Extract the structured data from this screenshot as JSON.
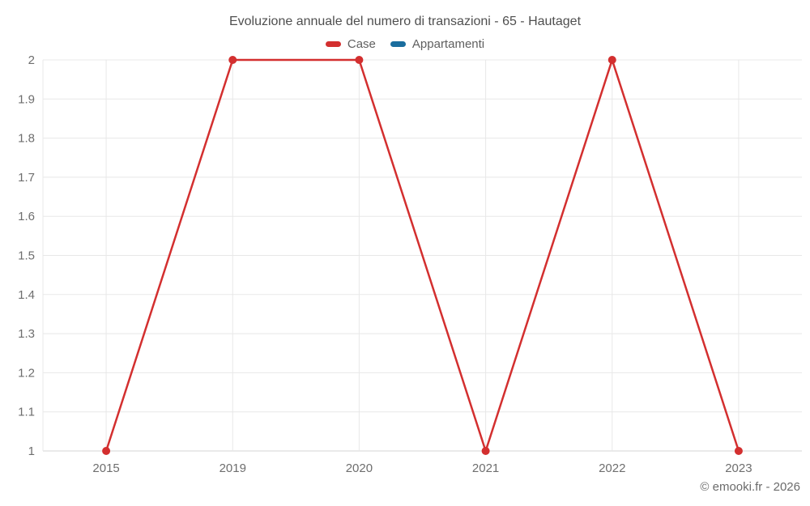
{
  "chart_data": {
    "type": "line",
    "title": "Evoluzione annuale del numero di transazioni - 65 - Hautaget",
    "categories": [
      "2015",
      "2019",
      "2020",
      "2021",
      "2022",
      "2023"
    ],
    "series": [
      {
        "name": "Case",
        "color": "#d32f2f",
        "values": [
          1,
          2,
          2,
          1,
          2,
          1
        ]
      },
      {
        "name": "Appartamenti",
        "color": "#1a6d9e",
        "values": []
      }
    ],
    "ylim": [
      1,
      2
    ],
    "yticks": [
      {
        "label": "2",
        "value": 2.0
      },
      {
        "label": "1.9",
        "value": 1.9
      },
      {
        "label": "1.8",
        "value": 1.8
      },
      {
        "label": "1.7",
        "value": 1.7
      },
      {
        "label": "1.6",
        "value": 1.6
      },
      {
        "label": "1.5",
        "value": 1.5
      },
      {
        "label": "1.4",
        "value": 1.4
      },
      {
        "label": "1.3",
        "value": 1.3
      },
      {
        "label": "1.2",
        "value": 1.2
      },
      {
        "label": "1.1",
        "value": 1.1
      },
      {
        "label": "1",
        "value": 1.0
      }
    ],
    "grid": true,
    "legend_position": "top",
    "marker_radius": 5
  },
  "footer": {
    "copyright": "© emooki.fr - 2026"
  }
}
